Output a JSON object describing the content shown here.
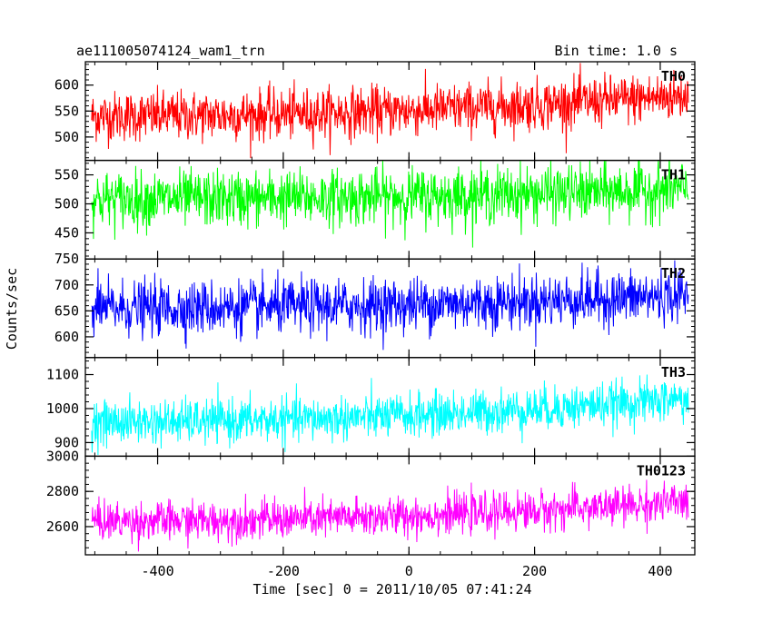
{
  "header": {
    "left_title": "ae111005074124_wam1_trn",
    "right_title": "Bin time: 1.0 s"
  },
  "axes": {
    "ylabel": "Counts/sec",
    "xlabel": "Time [sec] 0 = 2011/10/05 07:41:24"
  },
  "chart_data": {
    "type": "line",
    "title": "ae111005074124_wam1_trn",
    "subtitle": "Bin time: 1.0 s",
    "xlabel": "Time [sec] 0 = 2011/10/05 07:41:24",
    "ylabel": "Counts/sec",
    "xlim": [
      -515,
      455
    ],
    "data_x_range": [
      -505,
      445
    ],
    "x_ticks": [
      -400,
      -200,
      0,
      200,
      400
    ],
    "grid": false,
    "legend": "none",
    "series": [
      {
        "name": "TH0",
        "color": "#ff0000",
        "ylim": [
          455,
          645
        ],
        "y_ticks": [
          500,
          550,
          600
        ],
        "mean_start": 540,
        "mean_end": 580,
        "noise_sd": 24
      },
      {
        "name": "TH1",
        "color": "#00ff00",
        "ylim": [
          405,
          575
        ],
        "y_ticks": [
          450,
          500,
          550
        ],
        "mean_start": 508,
        "mean_end": 525,
        "noise_sd": 24
      },
      {
        "name": "TH2",
        "color": "#0000ff",
        "ylim": [
          560,
          750
        ],
        "y_ticks": [
          600,
          650,
          700,
          750
        ],
        "mean_start": 655,
        "mean_end": 680,
        "noise_sd": 26
      },
      {
        "name": "TH3",
        "color": "#00ffff",
        "ylim": [
          860,
          1150
        ],
        "y_ticks": [
          900,
          1000,
          1100
        ],
        "mean_start": 960,
        "mean_end": 1030,
        "noise_sd": 32
      },
      {
        "name": "TH0123",
        "color": "#ff00ff",
        "ylim": [
          2440,
          3000
        ],
        "y_ticks": [
          2600,
          2800,
          3000
        ],
        "mean_start": 2630,
        "mean_end": 2740,
        "noise_sd": 55
      }
    ]
  }
}
